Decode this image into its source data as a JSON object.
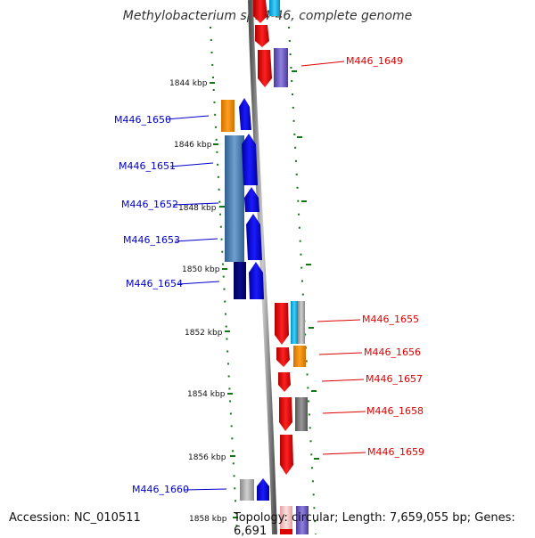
{
  "header": {
    "title": "Methylobacterium sp. 4-46, complete genome"
  },
  "footer": {
    "accession": "Accession: NC_010511",
    "topology": "Topology: circular; Length: 7,659,055 bp; Genes: 6,691"
  },
  "colors": {
    "left_label": "#0000cc",
    "right_label": "#dd0000",
    "tick_mark": "#117711",
    "backbone": "#888888"
  },
  "ticks": [
    "1844 kbp",
    "1846 kbp",
    "1848 kbp",
    "1850 kbp",
    "1852 kbp",
    "1854 kbp",
    "1856 kbp",
    "1858 kbp"
  ],
  "genes_left": [
    {
      "name": "M446_1650"
    },
    {
      "name": "M446_1651"
    },
    {
      "name": "M446_1652"
    },
    {
      "name": "M446_1653"
    },
    {
      "name": "M446_1654"
    },
    {
      "name": "M446_1660"
    }
  ],
  "genes_right": [
    {
      "name": "M446_1649"
    },
    {
      "name": "M446_1655"
    },
    {
      "name": "M446_1656"
    },
    {
      "name": "M446_1657"
    },
    {
      "name": "M446_1658"
    },
    {
      "name": "M446_1659"
    }
  ]
}
